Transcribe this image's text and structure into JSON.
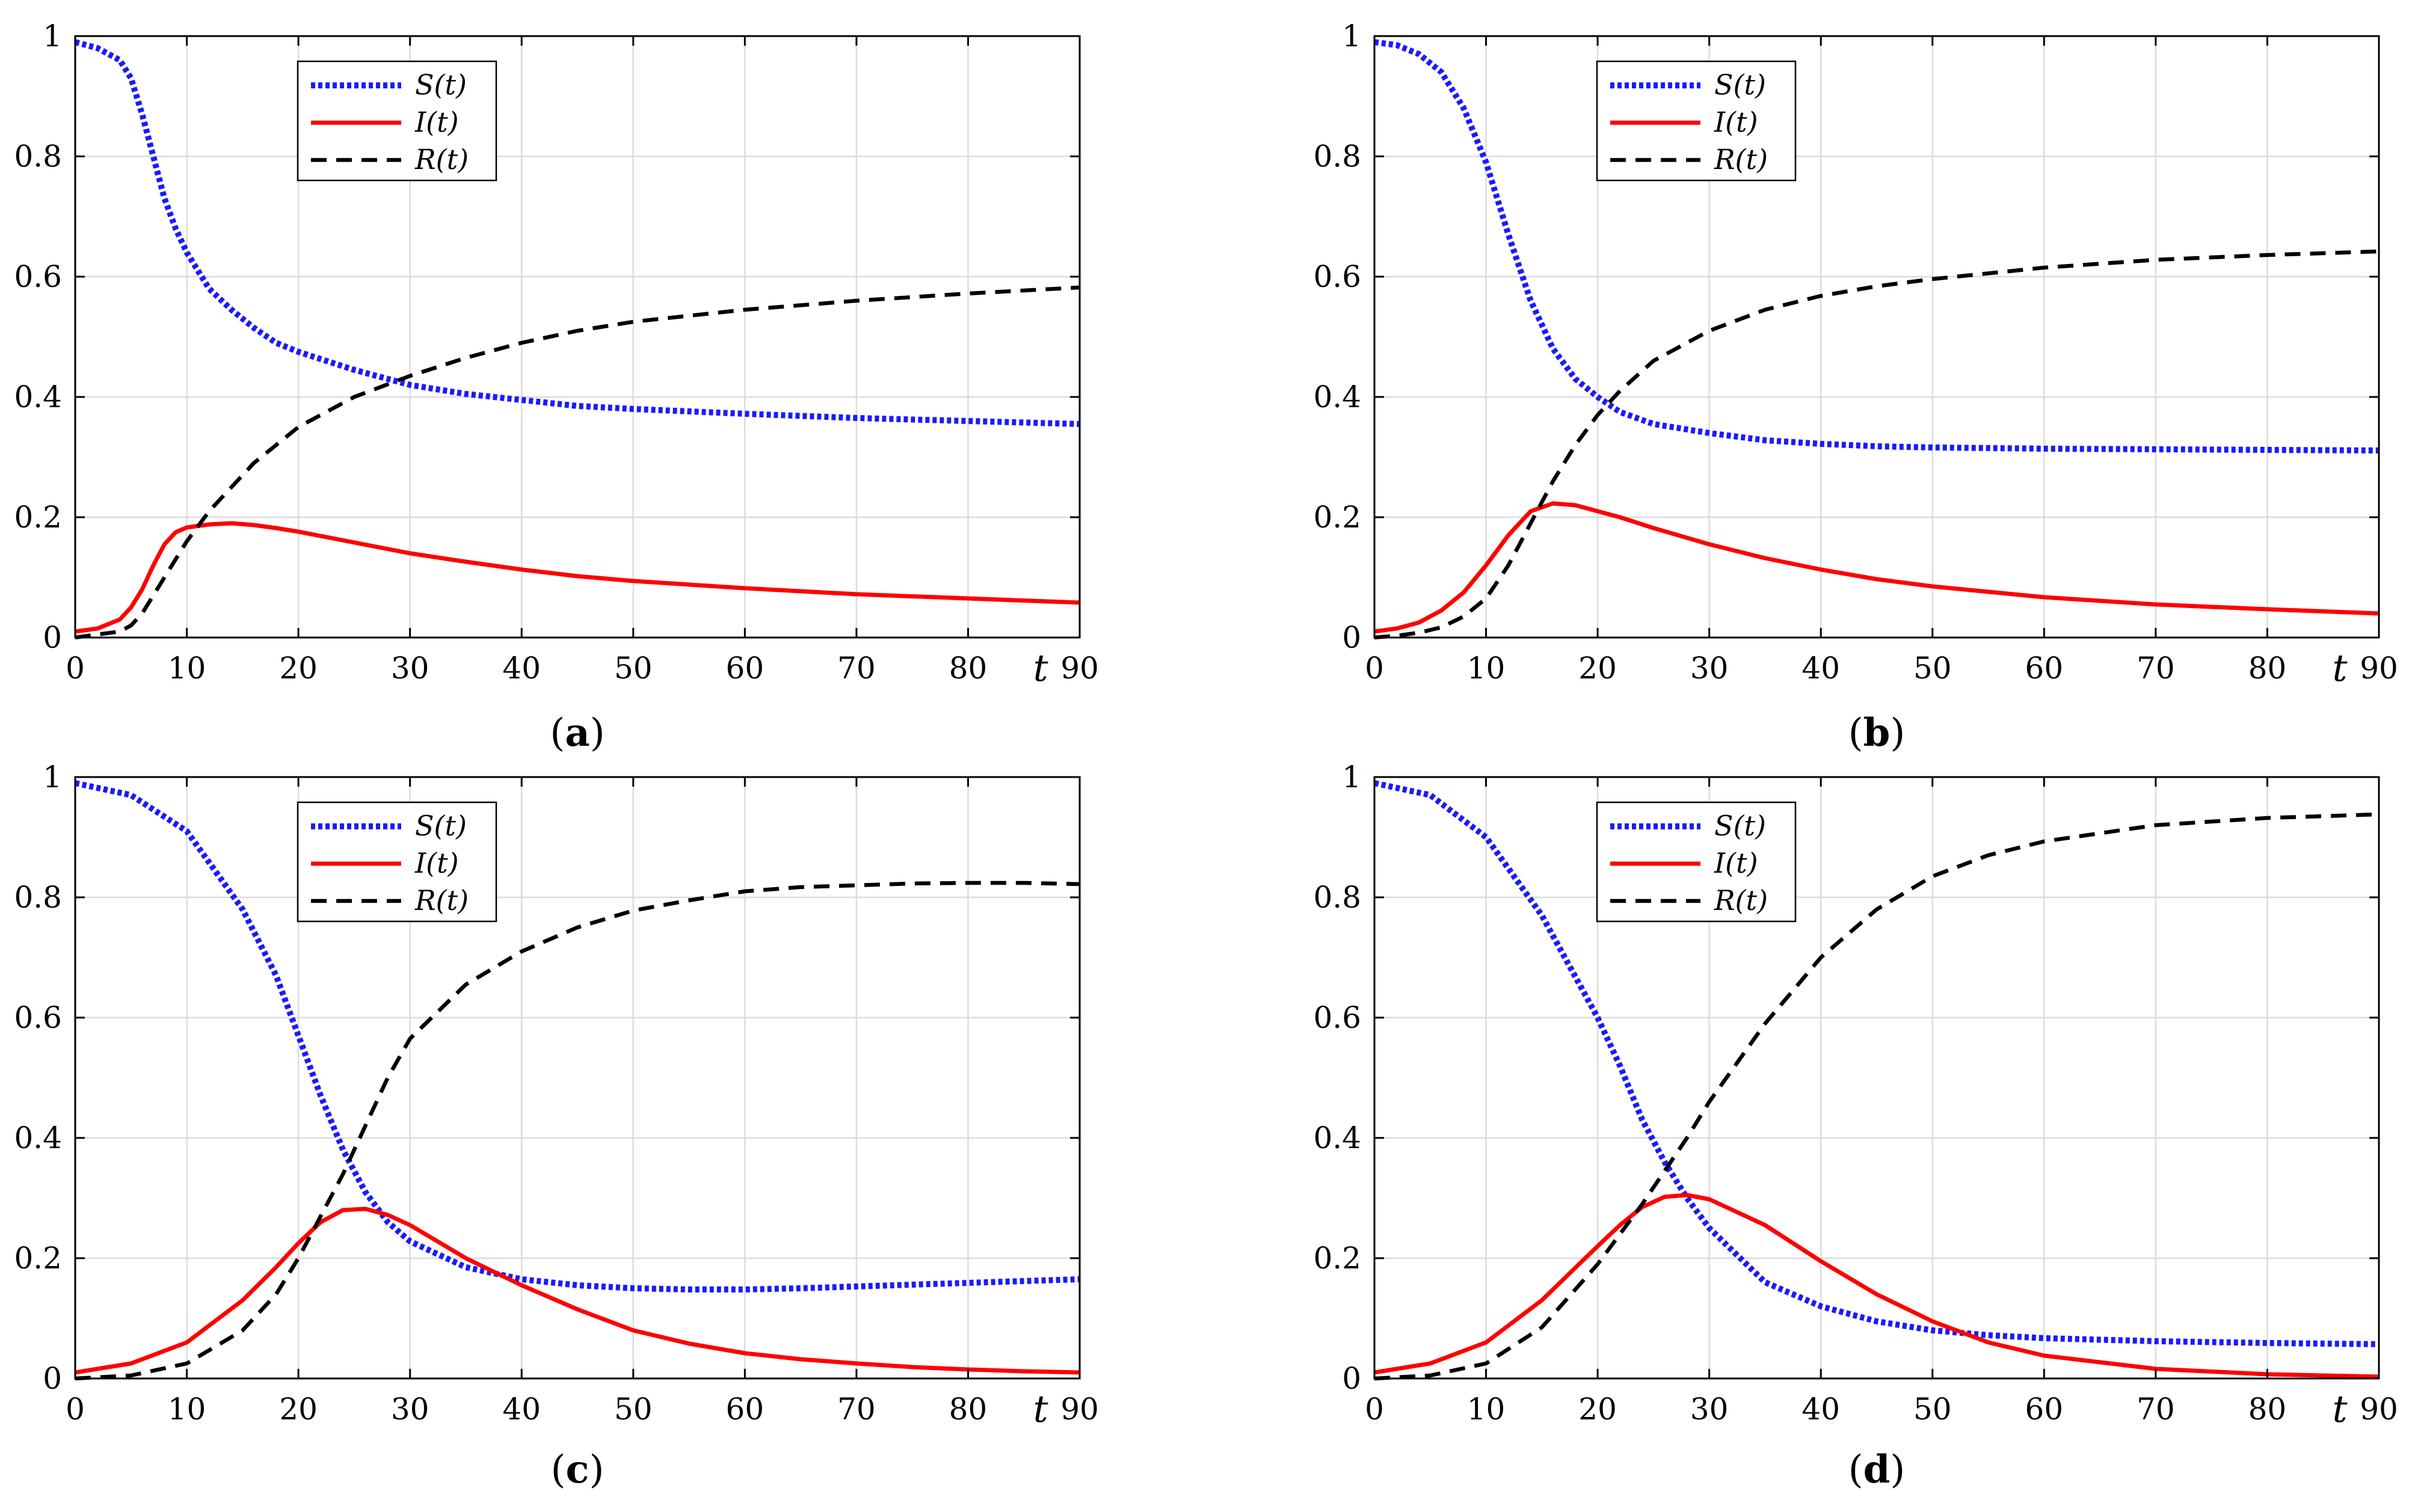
{
  "series_meta": [
    {
      "key": "S",
      "label": "S(t)",
      "color": "#1a1aff",
      "style": "dotted"
    },
    {
      "key": "I",
      "label": "I(t)",
      "color": "#ff0000",
      "style": "solid"
    },
    {
      "key": "R",
      "label": "R(t)",
      "color": "#000000",
      "style": "dashed"
    }
  ],
  "chart_data": [
    {
      "type": "line",
      "caption": "(a)",
      "caption_letter": "a",
      "xlabel": "t",
      "ylabel": "",
      "xlim": [
        0,
        90
      ],
      "ylim": [
        0,
        1
      ],
      "xticks": [
        0,
        10,
        20,
        30,
        40,
        50,
        60,
        70,
        80,
        90
      ],
      "yticks": [
        0,
        0.2,
        0.4,
        0.6,
        0.8,
        1
      ],
      "grid": true,
      "legend": "top-center",
      "x": [
        0,
        2,
        4,
        5,
        6,
        7,
        8,
        9,
        10,
        12,
        14,
        16,
        18,
        20,
        25,
        30,
        35,
        40,
        45,
        50,
        60,
        70,
        80,
        90
      ],
      "series": [
        {
          "name": "S(t)",
          "values": [
            0.99,
            0.98,
            0.96,
            0.93,
            0.87,
            0.8,
            0.73,
            0.68,
            0.64,
            0.58,
            0.545,
            0.515,
            0.49,
            0.475,
            0.445,
            0.42,
            0.405,
            0.395,
            0.385,
            0.38,
            0.372,
            0.365,
            0.36,
            0.355
          ]
        },
        {
          "name": "I(t)",
          "values": [
            0.01,
            0.015,
            0.03,
            0.05,
            0.08,
            0.12,
            0.155,
            0.175,
            0.183,
            0.188,
            0.19,
            0.187,
            0.182,
            0.176,
            0.158,
            0.14,
            0.126,
            0.113,
            0.102,
            0.094,
            0.082,
            0.072,
            0.065,
            0.058
          ]
        },
        {
          "name": "R(t)",
          "values": [
            0,
            0.005,
            0.01,
            0.02,
            0.04,
            0.07,
            0.1,
            0.13,
            0.16,
            0.21,
            0.25,
            0.29,
            0.32,
            0.35,
            0.4,
            0.435,
            0.465,
            0.49,
            0.51,
            0.525,
            0.545,
            0.56,
            0.572,
            0.582
          ]
        }
      ]
    },
    {
      "type": "line",
      "caption": "(b)",
      "caption_letter": "b",
      "xlabel": "t",
      "ylabel": "",
      "xlim": [
        0,
        90
      ],
      "ylim": [
        0,
        1
      ],
      "xticks": [
        0,
        10,
        20,
        30,
        40,
        50,
        60,
        70,
        80,
        90
      ],
      "yticks": [
        0,
        0.2,
        0.4,
        0.6,
        0.8,
        1
      ],
      "grid": true,
      "legend": "top-center",
      "x": [
        0,
        2,
        4,
        6,
        8,
        10,
        12,
        14,
        16,
        18,
        20,
        22,
        25,
        30,
        35,
        40,
        45,
        50,
        60,
        70,
        80,
        90
      ],
      "series": [
        {
          "name": "S(t)",
          "values": [
            0.99,
            0.985,
            0.97,
            0.94,
            0.88,
            0.79,
            0.67,
            0.56,
            0.48,
            0.43,
            0.4,
            0.375,
            0.355,
            0.34,
            0.328,
            0.322,
            0.318,
            0.316,
            0.314,
            0.313,
            0.312,
            0.311
          ]
        },
        {
          "name": "I(t)",
          "values": [
            0.01,
            0.015,
            0.025,
            0.045,
            0.075,
            0.12,
            0.17,
            0.21,
            0.223,
            0.22,
            0.21,
            0.2,
            0.182,
            0.155,
            0.132,
            0.113,
            0.097,
            0.085,
            0.067,
            0.055,
            0.047,
            0.04
          ]
        },
        {
          "name": "R(t)",
          "values": [
            0,
            0.003,
            0.008,
            0.017,
            0.035,
            0.065,
            0.12,
            0.19,
            0.26,
            0.32,
            0.37,
            0.41,
            0.46,
            0.51,
            0.545,
            0.568,
            0.584,
            0.596,
            0.615,
            0.628,
            0.636,
            0.642
          ]
        }
      ]
    },
    {
      "type": "line",
      "caption": "(c)",
      "caption_letter": "c",
      "xlabel": "t",
      "ylabel": "",
      "xlim": [
        0,
        90
      ],
      "ylim": [
        0,
        1
      ],
      "xticks": [
        0,
        10,
        20,
        30,
        40,
        50,
        60,
        70,
        80,
        90
      ],
      "yticks": [
        0,
        0.2,
        0.4,
        0.6,
        0.8,
        1
      ],
      "grid": true,
      "legend": "top-center",
      "x": [
        0,
        5,
        10,
        15,
        18,
        20,
        22,
        24,
        26,
        28,
        30,
        35,
        40,
        45,
        50,
        55,
        60,
        65,
        70,
        75,
        80,
        85,
        90
      ],
      "series": [
        {
          "name": "S(t)",
          "values": [
            0.99,
            0.97,
            0.91,
            0.78,
            0.67,
            0.57,
            0.47,
            0.38,
            0.31,
            0.26,
            0.228,
            0.185,
            0.165,
            0.155,
            0.15,
            0.148,
            0.148,
            0.15,
            0.153,
            0.156,
            0.159,
            0.162,
            0.165
          ]
        },
        {
          "name": "I(t)",
          "values": [
            0.01,
            0.025,
            0.06,
            0.13,
            0.185,
            0.225,
            0.26,
            0.28,
            0.282,
            0.272,
            0.255,
            0.2,
            0.155,
            0.115,
            0.08,
            0.058,
            0.042,
            0.032,
            0.025,
            0.019,
            0.015,
            0.012,
            0.01
          ]
        },
        {
          "name": "R(t)",
          "values": [
            0,
            0.005,
            0.025,
            0.08,
            0.14,
            0.2,
            0.27,
            0.34,
            0.42,
            0.5,
            0.565,
            0.655,
            0.71,
            0.75,
            0.778,
            0.795,
            0.81,
            0.817,
            0.82,
            0.823,
            0.824,
            0.824,
            0.822
          ]
        }
      ]
    },
    {
      "type": "line",
      "caption": "(d)",
      "caption_letter": "d",
      "xlabel": "t",
      "ylabel": "",
      "xlim": [
        0,
        90
      ],
      "ylim": [
        0,
        1
      ],
      "xticks": [
        0,
        10,
        20,
        30,
        40,
        50,
        60,
        70,
        80,
        90
      ],
      "yticks": [
        0,
        0.2,
        0.4,
        0.6,
        0.8,
        1
      ],
      "grid": true,
      "legend": "top-center",
      "x": [
        0,
        5,
        10,
        15,
        20,
        22,
        24,
        26,
        28,
        30,
        35,
        40,
        45,
        50,
        55,
        60,
        70,
        80,
        90
      ],
      "series": [
        {
          "name": "S(t)",
          "values": [
            0.99,
            0.97,
            0.9,
            0.77,
            0.6,
            0.52,
            0.43,
            0.36,
            0.3,
            0.25,
            0.16,
            0.12,
            0.095,
            0.08,
            0.072,
            0.067,
            0.062,
            0.059,
            0.057
          ]
        },
        {
          "name": "I(t)",
          "values": [
            0.01,
            0.025,
            0.06,
            0.13,
            0.22,
            0.255,
            0.285,
            0.302,
            0.305,
            0.298,
            0.255,
            0.195,
            0.14,
            0.095,
            0.06,
            0.038,
            0.016,
            0.007,
            0.003
          ]
        },
        {
          "name": "R(t)",
          "values": [
            0,
            0.005,
            0.025,
            0.085,
            0.19,
            0.24,
            0.29,
            0.345,
            0.4,
            0.46,
            0.59,
            0.7,
            0.78,
            0.835,
            0.87,
            0.893,
            0.92,
            0.932,
            0.938
          ]
        }
      ]
    }
  ]
}
